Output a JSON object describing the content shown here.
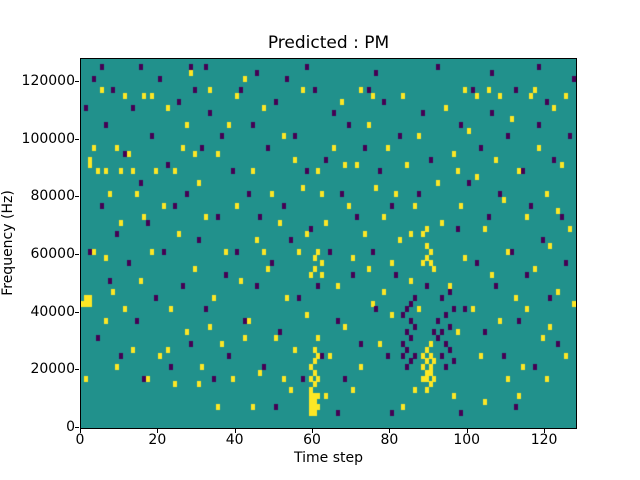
{
  "chart_data": {
    "type": "heatmap",
    "title": "Predicted : PM",
    "xlabel": "Time step",
    "ylabel": "Frequency (Hz)",
    "x_range": [
      0,
      128
    ],
    "y_range": [
      0,
      128000
    ],
    "grid": [
      128,
      64
    ],
    "x_ticks": [
      0,
      20,
      40,
      60,
      80,
      100,
      120
    ],
    "y_ticks": [
      0,
      20000,
      40000,
      60000,
      80000,
      100000,
      120000
    ],
    "legend": "none",
    "colors": {
      "background": "#21918c",
      "high": "#fde725",
      "low": "#440154",
      "axes": "#000000",
      "figure": "#ffffff"
    },
    "cells_high": [
      [
        1,
        21
      ],
      [
        1,
        22
      ],
      [
        2,
        21
      ],
      [
        2,
        22
      ],
      [
        2,
        45
      ],
      [
        2,
        46
      ],
      [
        1,
        8
      ],
      [
        3,
        30
      ],
      [
        4,
        44
      ],
      [
        5,
        58
      ],
      [
        6,
        18
      ],
      [
        7,
        40
      ],
      [
        8,
        23
      ],
      [
        9,
        10
      ],
      [
        9,
        48
      ],
      [
        10,
        35
      ],
      [
        11,
        57
      ],
      [
        11,
        20
      ],
      [
        12,
        47
      ],
      [
        13,
        13
      ],
      [
        14,
        40
      ],
      [
        15,
        25
      ],
      [
        16,
        57
      ],
      [
        17,
        8
      ],
      [
        18,
        30
      ],
      [
        19,
        44
      ],
      [
        20,
        12
      ],
      [
        21,
        38
      ],
      [
        22,
        55
      ],
      [
        23,
        20
      ],
      [
        24,
        7
      ],
      [
        25,
        33
      ],
      [
        26,
        48
      ],
      [
        27,
        16
      ],
      [
        28,
        61
      ],
      [
        29,
        27
      ],
      [
        30,
        42
      ],
      [
        31,
        10
      ],
      [
        32,
        36
      ],
      [
        33,
        58
      ],
      [
        34,
        22
      ],
      [
        35,
        47
      ],
      [
        36,
        14
      ],
      [
        37,
        30
      ],
      [
        38,
        52
      ],
      [
        39,
        8
      ],
      [
        40,
        38
      ],
      [
        41,
        25
      ],
      [
        42,
        60
      ],
      [
        43,
        18
      ],
      [
        44,
        44
      ],
      [
        45,
        32
      ],
      [
        46,
        9
      ],
      [
        47,
        55
      ],
      [
        48,
        27
      ],
      [
        49,
        40
      ],
      [
        50,
        15
      ],
      [
        51,
        35
      ],
      [
        52,
        50
      ],
      [
        53,
        22
      ],
      [
        54,
        6
      ],
      [
        55,
        46
      ],
      [
        56,
        30
      ],
      [
        57,
        58
      ],
      [
        58,
        19
      ],
      [
        59,
        2
      ],
      [
        59,
        3
      ],
      [
        59,
        4
      ],
      [
        59,
        5
      ],
      [
        59,
        6
      ],
      [
        59,
        8
      ],
      [
        59,
        10
      ],
      [
        59,
        26
      ],
      [
        60,
        2
      ],
      [
        60,
        3
      ],
      [
        60,
        4
      ],
      [
        60,
        5
      ],
      [
        60,
        7
      ],
      [
        60,
        9
      ],
      [
        60,
        11
      ],
      [
        60,
        13
      ],
      [
        60,
        27
      ],
      [
        60,
        29
      ],
      [
        61,
        3
      ],
      [
        61,
        5
      ],
      [
        61,
        8
      ],
      [
        61,
        12
      ],
      [
        61,
        15
      ],
      [
        61,
        30
      ],
      [
        62,
        26
      ],
      [
        62,
        28
      ],
      [
        62,
        40
      ],
      [
        63,
        35
      ],
      [
        64,
        12
      ],
      [
        65,
        48
      ],
      [
        66,
        24
      ],
      [
        67,
        56
      ],
      [
        68,
        17
      ],
      [
        69,
        38
      ],
      [
        70,
        29
      ],
      [
        71,
        45
      ],
      [
        72,
        10
      ],
      [
        73,
        33
      ],
      [
        74,
        52
      ],
      [
        75,
        21
      ],
      [
        76,
        41
      ],
      [
        77,
        14
      ],
      [
        78,
        36
      ],
      [
        78,
        23
      ],
      [
        79,
        48
      ],
      [
        80,
        28
      ],
      [
        80,
        19
      ],
      [
        81,
        40
      ],
      [
        82,
        32
      ],
      [
        83,
        57
      ],
      [
        84,
        45
      ],
      [
        85,
        25
      ],
      [
        86,
        38
      ],
      [
        87,
        50
      ],
      [
        88,
        8
      ],
      [
        88,
        10
      ],
      [
        88,
        12
      ],
      [
        88,
        28
      ],
      [
        88,
        33
      ],
      [
        89,
        6
      ],
      [
        89,
        8
      ],
      [
        89,
        9
      ],
      [
        89,
        11
      ],
      [
        89,
        13
      ],
      [
        89,
        29
      ],
      [
        89,
        31
      ],
      [
        89,
        34
      ],
      [
        90,
        7
      ],
      [
        90,
        9
      ],
      [
        90,
        10
      ],
      [
        90,
        12
      ],
      [
        90,
        14
      ],
      [
        90,
        28
      ],
      [
        90,
        30
      ],
      [
        91,
        8
      ],
      [
        91,
        11
      ],
      [
        91,
        27
      ],
      [
        92,
        42
      ],
      [
        93,
        35
      ],
      [
        94,
        55
      ],
      [
        95,
        24
      ],
      [
        96,
        47
      ],
      [
        97,
        16
      ],
      [
        98,
        38
      ],
      [
        99,
        29
      ],
      [
        100,
        51
      ],
      [
        101,
        20
      ],
      [
        102,
        43
      ],
      [
        103,
        12
      ],
      [
        104,
        34
      ],
      [
        105,
        58
      ],
      [
        106,
        26
      ],
      [
        107,
        46
      ],
      [
        108,
        18
      ],
      [
        109,
        39
      ],
      [
        110,
        30
      ],
      [
        111,
        53
      ],
      [
        112,
        22
      ],
      [
        113,
        44
      ],
      [
        114,
        10
      ],
      [
        115,
        36
      ],
      [
        116,
        57
      ],
      [
        117,
        27
      ],
      [
        118,
        48
      ],
      [
        119,
        15
      ],
      [
        120,
        40
      ],
      [
        121,
        31
      ],
      [
        122,
        55
      ],
      [
        123,
        23
      ],
      [
        124,
        45
      ],
      [
        125,
        12
      ],
      [
        126,
        34
      ],
      [
        127,
        21
      ],
      [
        0,
        21
      ],
      [
        3,
        48
      ],
      [
        6,
        44
      ],
      [
        13,
        44
      ],
      [
        22,
        13
      ],
      [
        30,
        7
      ],
      [
        35,
        3
      ],
      [
        44,
        3
      ],
      [
        52,
        8
      ],
      [
        57,
        41
      ],
      [
        63,
        5
      ],
      [
        70,
        6
      ],
      [
        83,
        3
      ],
      [
        96,
        5
      ],
      [
        104,
        4
      ],
      [
        113,
        5
      ],
      [
        120,
        8
      ],
      [
        125,
        57
      ],
      [
        10,
        44
      ],
      [
        18,
        57
      ],
      [
        27,
        52
      ],
      [
        40,
        57
      ],
      [
        55,
        13
      ],
      [
        68,
        45
      ],
      [
        75,
        57
      ],
      [
        86,
        6
      ],
      [
        99,
        58
      ],
      [
        110,
        8
      ],
      [
        117,
        58
      ],
      [
        24,
        44
      ],
      [
        33,
        17
      ],
      [
        47,
        30
      ],
      [
        61,
        44
      ],
      [
        74,
        27
      ],
      [
        87,
        20
      ],
      [
        102,
        57
      ],
      [
        115,
        20
      ],
      [
        6,
        29
      ],
      [
        16,
        36
      ],
      [
        29,
        47
      ],
      [
        42,
        15
      ],
      [
        58,
        33
      ],
      [
        72,
        58
      ],
      [
        85,
        33
      ],
      [
        97,
        44
      ],
      [
        108,
        57
      ],
      [
        121,
        17
      ],
      [
        123,
        37
      ]
    ],
    "cells_low": [
      [
        1,
        55
      ],
      [
        2,
        30
      ],
      [
        3,
        60
      ],
      [
        4,
        15
      ],
      [
        5,
        38
      ],
      [
        6,
        52
      ],
      [
        7,
        25
      ],
      [
        8,
        58
      ],
      [
        9,
        33
      ],
      [
        10,
        12
      ],
      [
        11,
        47
      ],
      [
        12,
        28
      ],
      [
        13,
        55
      ],
      [
        14,
        18
      ],
      [
        15,
        42
      ],
      [
        16,
        8
      ],
      [
        17,
        35
      ],
      [
        18,
        50
      ],
      [
        19,
        22
      ],
      [
        20,
        60
      ],
      [
        21,
        30
      ],
      [
        22,
        45
      ],
      [
        23,
        10
      ],
      [
        24,
        38
      ],
      [
        25,
        56
      ],
      [
        26,
        24
      ],
      [
        27,
        40
      ],
      [
        28,
        14
      ],
      [
        29,
        58
      ],
      [
        30,
        32
      ],
      [
        31,
        48
      ],
      [
        32,
        20
      ],
      [
        33,
        54
      ],
      [
        34,
        8
      ],
      [
        35,
        36
      ],
      [
        36,
        50
      ],
      [
        37,
        26
      ],
      [
        38,
        12
      ],
      [
        39,
        44
      ],
      [
        40,
        30
      ],
      [
        41,
        58
      ],
      [
        42,
        18
      ],
      [
        43,
        40
      ],
      [
        44,
        52
      ],
      [
        45,
        24
      ],
      [
        46,
        36
      ],
      [
        47,
        10
      ],
      [
        48,
        48
      ],
      [
        49,
        28
      ],
      [
        50,
        56
      ],
      [
        51,
        16
      ],
      [
        52,
        38
      ],
      [
        53,
        60
      ],
      [
        54,
        32
      ],
      [
        55,
        50
      ],
      [
        56,
        22
      ],
      [
        57,
        8
      ],
      [
        58,
        44
      ],
      [
        59,
        34
      ],
      [
        60,
        58
      ],
      [
        61,
        24
      ],
      [
        62,
        12
      ],
      [
        63,
        46
      ],
      [
        64,
        30
      ],
      [
        65,
        54
      ],
      [
        66,
        18
      ],
      [
        67,
        40
      ],
      [
        68,
        8
      ],
      [
        69,
        52
      ],
      [
        70,
        26
      ],
      [
        71,
        36
      ],
      [
        72,
        14
      ],
      [
        73,
        48
      ],
      [
        74,
        58
      ],
      [
        75,
        30
      ],
      [
        76,
        20
      ],
      [
        77,
        44
      ],
      [
        78,
        56
      ],
      [
        79,
        12
      ],
      [
        80,
        38
      ],
      [
        81,
        26
      ],
      [
        82,
        50
      ],
      [
        83,
        12
      ],
      [
        83,
        14
      ],
      [
        83,
        19
      ],
      [
        84,
        10
      ],
      [
        84,
        13
      ],
      [
        84,
        16
      ],
      [
        84,
        20
      ],
      [
        85,
        11
      ],
      [
        85,
        15
      ],
      [
        85,
        18
      ],
      [
        85,
        21
      ],
      [
        86,
        12
      ],
      [
        86,
        17
      ],
      [
        86,
        22
      ],
      [
        87,
        40
      ],
      [
        88,
        54
      ],
      [
        89,
        24
      ],
      [
        90,
        46
      ],
      [
        91,
        16
      ],
      [
        92,
        15
      ],
      [
        92,
        18
      ],
      [
        93,
        12
      ],
      [
        93,
        16
      ],
      [
        93,
        22
      ],
      [
        94,
        10
      ],
      [
        94,
        14
      ],
      [
        94,
        19
      ],
      [
        95,
        13
      ],
      [
        95,
        17
      ],
      [
        95,
        23
      ],
      [
        96,
        11
      ],
      [
        96,
        20
      ],
      [
        97,
        34
      ],
      [
        98,
        52
      ],
      [
        99,
        20
      ],
      [
        100,
        42
      ],
      [
        101,
        58
      ],
      [
        102,
        28
      ],
      [
        103,
        48
      ],
      [
        104,
        16
      ],
      [
        105,
        36
      ],
      [
        106,
        54
      ],
      [
        107,
        24
      ],
      [
        108,
        40
      ],
      [
        109,
        12
      ],
      [
        110,
        50
      ],
      [
        111,
        30
      ],
      [
        112,
        58
      ],
      [
        113,
        18
      ],
      [
        114,
        44
      ],
      [
        115,
        26
      ],
      [
        116,
        38
      ],
      [
        117,
        10
      ],
      [
        118,
        52
      ],
      [
        119,
        32
      ],
      [
        120,
        56
      ],
      [
        121,
        22
      ],
      [
        122,
        46
      ],
      [
        123,
        14
      ],
      [
        124,
        36
      ],
      [
        125,
        28
      ],
      [
        126,
        50
      ],
      [
        127,
        60
      ],
      [
        5,
        62
      ],
      [
        15,
        62
      ],
      [
        28,
        62
      ],
      [
        45,
        61
      ],
      [
        58,
        62
      ],
      [
        76,
        61
      ],
      [
        92,
        62
      ],
      [
        106,
        61
      ],
      [
        118,
        62
      ],
      [
        32,
        62
      ],
      [
        50,
        3
      ],
      [
        66,
        2
      ],
      [
        80,
        2
      ],
      [
        98,
        2
      ],
      [
        112,
        3
      ]
    ]
  }
}
